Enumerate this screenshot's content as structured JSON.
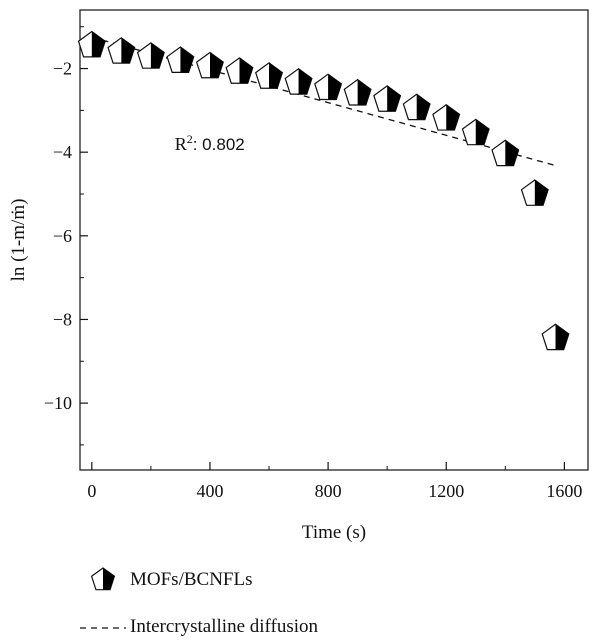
{
  "chart_data": {
    "type": "scatter",
    "title": "",
    "xlabel": "Time (s)",
    "ylabel": "ln (1-m/ṁ)",
    "xlim": [
      -40,
      1680
    ],
    "ylim": [
      -11.6,
      -0.6
    ],
    "xticks": [
      0,
      400,
      800,
      1200,
      1600
    ],
    "yticks": [
      -2,
      -4,
      -6,
      -8,
      -10
    ],
    "xtick_labels": [
      "0",
      "400",
      "800",
      "1200",
      "1600"
    ],
    "ytick_labels": [
      "−2",
      "−4",
      "−6",
      "−8",
      "−10"
    ],
    "grid": false,
    "legend_position": "below-plot",
    "annotation": {
      "text": "R",
      "sup": "2",
      "rest": ": 0.802",
      "x": 450,
      "y": -3.8
    },
    "series": [
      {
        "name": "MOFs/BCNFLs",
        "marker": "half-filled pentagon",
        "color": "#000000",
        "x": [
          0,
          100,
          200,
          300,
          400,
          500,
          600,
          700,
          800,
          900,
          1000,
          1100,
          1200,
          1300,
          1400,
          1500,
          1570
        ],
        "y": [
          -1.45,
          -1.6,
          -1.72,
          -1.82,
          -1.95,
          -2.08,
          -2.2,
          -2.34,
          -2.47,
          -2.6,
          -2.75,
          -2.95,
          -3.2,
          -3.55,
          -4.05,
          -5.0,
          -8.45
        ]
      },
      {
        "name": "Intercrystalline diffusion",
        "style": "dashed",
        "color": "#000000",
        "x": [
          0,
          1570
        ],
        "y": [
          -1.25,
          -4.32
        ]
      }
    ]
  }
}
